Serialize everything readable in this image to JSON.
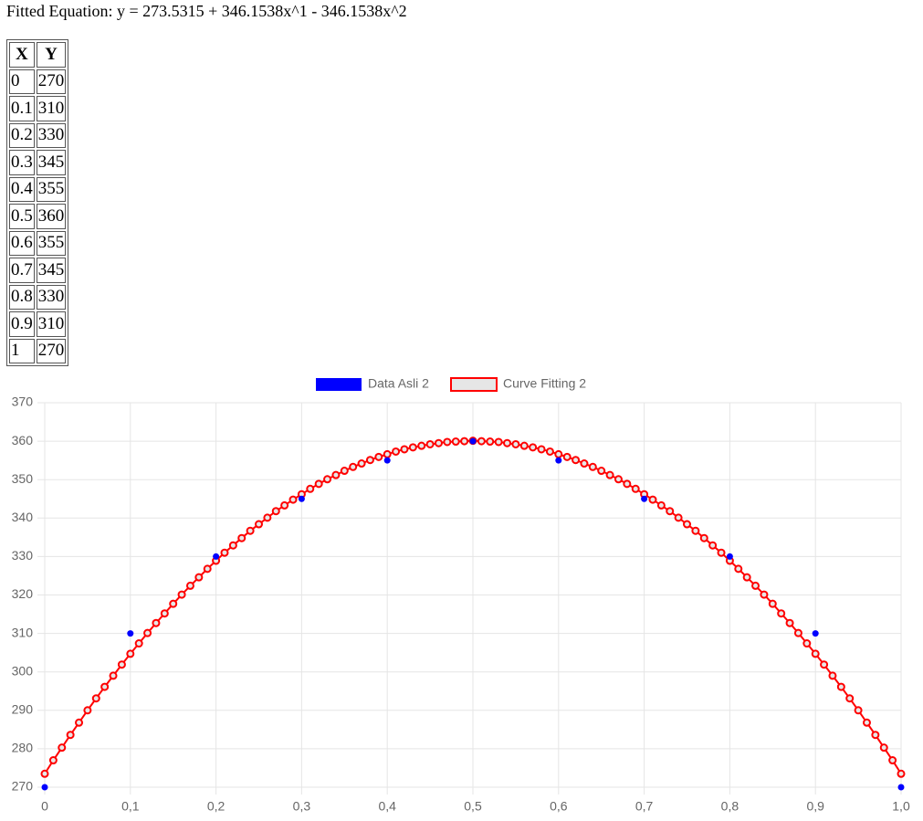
{
  "header": {
    "title": "Fitted Equation: y = 273.5315 + 346.1538x^1 - 346.1538x^2"
  },
  "table": {
    "header": [
      "X",
      "Y"
    ],
    "rows": [
      [
        0,
        270
      ],
      [
        0.1,
        310
      ],
      [
        0.2,
        330
      ],
      [
        0.3,
        345
      ],
      [
        0.4,
        355
      ],
      [
        0.5,
        360
      ],
      [
        0.6,
        355
      ],
      [
        0.7,
        345
      ],
      [
        0.8,
        330
      ],
      [
        0.9,
        310
      ],
      [
        1,
        270
      ]
    ]
  },
  "chart_data": {
    "type": "scatter",
    "series": [
      {
        "name": "Data Asli 2",
        "color": "#0000ff",
        "x": [
          0,
          0.1,
          0.2,
          0.3,
          0.4,
          0.5,
          0.6,
          0.7,
          0.8,
          0.9,
          1
        ],
        "values": [
          270,
          310,
          330,
          345,
          355,
          360,
          355,
          345,
          330,
          310,
          270
        ]
      },
      {
        "name": "Curve Fitting 2",
        "color": "#ff0000",
        "x": [
          0,
          0.01,
          0.02,
          0.03,
          0.04,
          0.05,
          0.06,
          0.07,
          0.08,
          0.09,
          0.1,
          0.11,
          0.12,
          0.13,
          0.14,
          0.15,
          0.16,
          0.17,
          0.18,
          0.19,
          0.2,
          0.21,
          0.22,
          0.23,
          0.24,
          0.25,
          0.26,
          0.27,
          0.28,
          0.29,
          0.3,
          0.31,
          0.32,
          0.33,
          0.34,
          0.35,
          0.36,
          0.37,
          0.38,
          0.39,
          0.4,
          0.41,
          0.42,
          0.43,
          0.44,
          0.45,
          0.46,
          0.47,
          0.48,
          0.49,
          0.5,
          0.51,
          0.52,
          0.53,
          0.54,
          0.55,
          0.56,
          0.57,
          0.58,
          0.59,
          0.6,
          0.61,
          0.62,
          0.63,
          0.64,
          0.65,
          0.66,
          0.67,
          0.68,
          0.69,
          0.7,
          0.71,
          0.72,
          0.73,
          0.74,
          0.75,
          0.76,
          0.77,
          0.78,
          0.79,
          0.8,
          0.81,
          0.82,
          0.83,
          0.84,
          0.85,
          0.86,
          0.87,
          0.88,
          0.89,
          0.9,
          0.91,
          0.92,
          0.93,
          0.94,
          0.95,
          0.96,
          0.97,
          0.98,
          0.99,
          1
        ],
        "values": [
          273.5,
          277.0,
          280.3,
          283.6,
          286.8,
          290.0,
          293.1,
          296.1,
          299.0,
          301.9,
          304.7,
          307.4,
          310.1,
          312.7,
          315.2,
          317.7,
          320.1,
          322.4,
          324.6,
          326.8,
          328.9,
          331.0,
          332.9,
          334.8,
          336.7,
          338.4,
          340.1,
          341.8,
          343.3,
          344.8,
          346.2,
          347.6,
          348.9,
          350.1,
          351.2,
          352.3,
          353.3,
          354.2,
          355.1,
          355.9,
          356.6,
          357.3,
          357.9,
          358.4,
          358.8,
          359.2,
          359.5,
          359.8,
          359.9,
          360.0,
          360.1,
          360.0,
          359.9,
          359.8,
          359.5,
          359.2,
          358.8,
          358.4,
          357.9,
          357.3,
          356.6,
          355.9,
          355.1,
          354.2,
          353.3,
          352.3,
          351.2,
          350.1,
          348.9,
          347.6,
          346.2,
          344.8,
          343.3,
          341.8,
          340.1,
          338.4,
          336.7,
          334.8,
          332.9,
          331.0,
          328.9,
          326.8,
          324.6,
          322.4,
          320.1,
          317.7,
          315.2,
          312.7,
          310.1,
          307.4,
          304.7,
          301.9,
          299.0,
          296.1,
          293.1,
          290.0,
          286.8,
          283.6,
          280.3,
          277.0,
          273.5
        ]
      }
    ],
    "xlim": [
      0,
      1
    ],
    "xticks": [
      0,
      {
        "value": 0.1,
        "label": "0,1"
      },
      {
        "value": 0.2,
        "label": "0,2"
      },
      {
        "value": 0.3,
        "label": "0,3"
      },
      {
        "value": 0.4,
        "label": "0,4"
      },
      {
        "value": 0.5,
        "label": "0,5"
      },
      {
        "value": 0.6,
        "label": "0,6"
      },
      {
        "value": 0.7,
        "label": "0,7"
      },
      {
        "value": 0.8,
        "label": "0,8"
      },
      {
        "value": 0.9,
        "label": "0,9"
      },
      {
        "value": 1,
        "label": "1,0"
      }
    ],
    "ylim": [
      270,
      370
    ],
    "yticks": [
      270,
      280,
      290,
      300,
      310,
      320,
      330,
      340,
      350,
      360,
      370
    ],
    "grid": true,
    "legend": "top"
  }
}
